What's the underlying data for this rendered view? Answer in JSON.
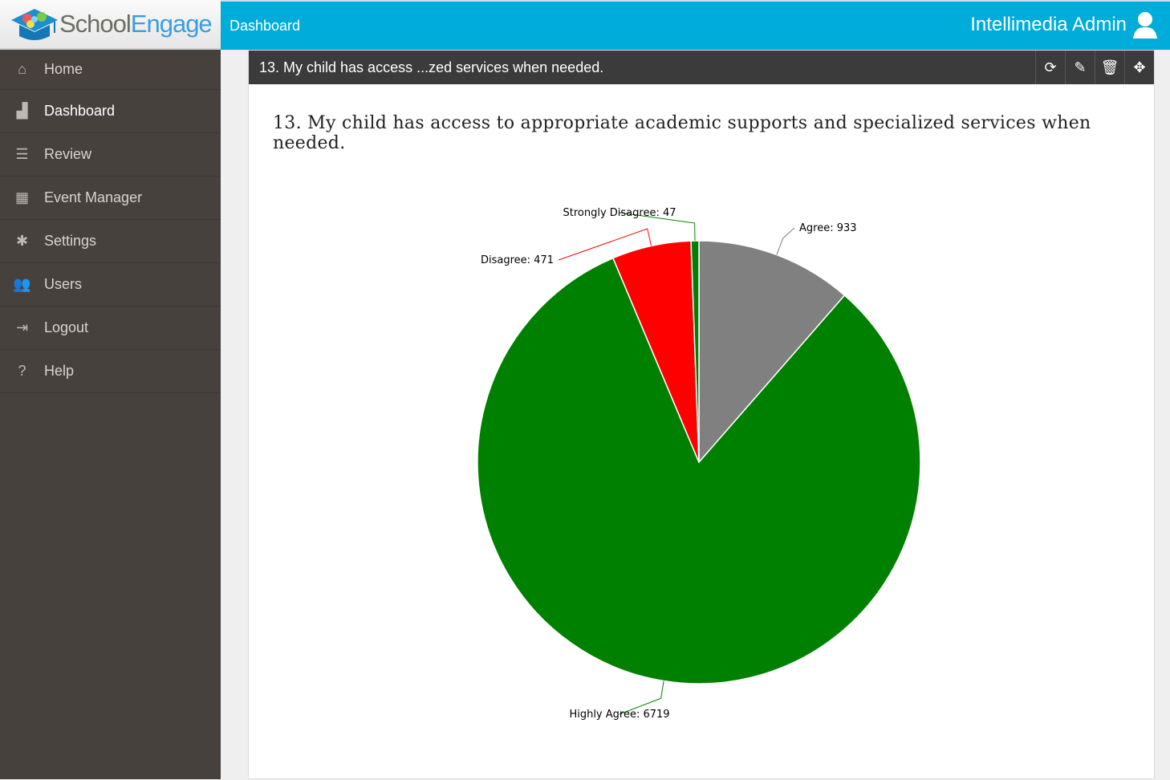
{
  "app": {
    "brand_part1": "School",
    "brand_part2": "Engage",
    "breadcrumb": "Dashboard",
    "user": "Intellimedia Admin"
  },
  "sidebar": {
    "items": [
      {
        "label": "Home",
        "icon": "⌂",
        "name": "home"
      },
      {
        "label": "Dashboard",
        "icon": "▟",
        "name": "dashboard"
      },
      {
        "label": "Review",
        "icon": "☰",
        "name": "review"
      },
      {
        "label": "Event Manager",
        "icon": "▦",
        "name": "event-manager"
      },
      {
        "label": "Settings",
        "icon": "✱",
        "name": "settings"
      },
      {
        "label": "Users",
        "icon": "👥",
        "name": "users"
      },
      {
        "label": "Logout",
        "icon": "⇥",
        "name": "logout"
      },
      {
        "label": "Help",
        "icon": "?",
        "name": "help"
      }
    ]
  },
  "panel": {
    "header": "13. My child has access ...zed services when needed.",
    "title": "13. My child has access to appropriate academic supports and specialized services when needed.",
    "tools": {
      "refresh": "⟳",
      "edit": "✎",
      "delete": "🗑",
      "move": "✥"
    }
  },
  "chart_data": {
    "type": "pie",
    "title": "13. My child has access to appropriate academic supports and specialized services when needed.",
    "slices": [
      {
        "label": "Agree",
        "value": 933,
        "color": "#808080"
      },
      {
        "label": "Highly Agree",
        "value": 6719,
        "color": "#008000"
      },
      {
        "label": "Disagree",
        "value": 471,
        "color": "#ff0000"
      },
      {
        "label": "Strongly Disagree",
        "value": 47,
        "color": "#008000"
      }
    ]
  }
}
